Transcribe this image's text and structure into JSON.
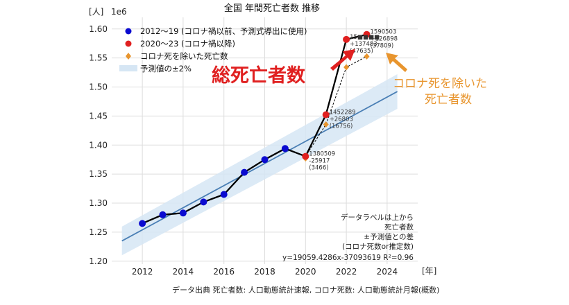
{
  "chart_data": {
    "type": "line",
    "title": "全国 年間死亡者数 推移",
    "y_unit_label": "[人]",
    "y_scale_label": "1e6",
    "x_unit_label": "[年]",
    "xlim": [
      2010.5,
      2025.5
    ],
    "ylim": [
      1.195,
      1.62
    ],
    "x_ticks": [
      2012,
      2014,
      2016,
      2018,
      2020,
      2022,
      2024
    ],
    "y_ticks": [
      1.2,
      1.25,
      1.3,
      1.35,
      1.4,
      1.45,
      1.5,
      1.55,
      1.6
    ],
    "grid": true,
    "legend_position": "top-left",
    "colors": {
      "pre": "#0a0ad0",
      "post": "#e02020",
      "excl": "#e8952e",
      "trend": "#4a7fb5",
      "band": "#d6e6f4",
      "line": "#000000"
    },
    "legend": [
      {
        "label": "2012〜19 (コロナ禍以前、予測式導出に使用)",
        "marker": "circle",
        "color": "#0a0ad0"
      },
      {
        "label": "2020〜23 (コロナ禍以降)",
        "marker": "circle",
        "color": "#e02020"
      },
      {
        "label": "コロナ死を除いた死亡数",
        "marker": "diamond",
        "color": "#e8952e"
      },
      {
        "label": "予測値の±2%",
        "marker": "band",
        "color": "#d6e6f4"
      }
    ],
    "series": [
      {
        "name": "2012〜19 (コロナ禍以前、予測式導出に使用)",
        "x": [
          2012,
          2013,
          2014,
          2015,
          2016,
          2017,
          2018,
          2019
        ],
        "y": [
          1.265,
          1.28,
          1.283,
          1.302,
          1.315,
          1.353,
          1.375,
          1.394
        ]
      },
      {
        "name": "2020〜23 (コロナ禍以降)",
        "x": [
          2020,
          2021,
          2022,
          2023
        ],
        "y": [
          1.380509,
          1.452289,
          1.582,
          1.590503
        ]
      },
      {
        "name": "コロナ死を除いた死亡数",
        "x": [
          2020,
          2021,
          2022,
          2023
        ],
        "y": [
          1.377043,
          1.435533,
          1.534,
          1.552694
        ]
      }
    ],
    "trend": {
      "slope": 19059.4286,
      "intercept": -37093619,
      "band_pct": 0.02,
      "x_range": [
        2011,
        2024.5
      ],
      "equation_label": "y=19059.4286x-37093619   R²=0.96"
    },
    "data_labels": [
      {
        "x": 2020,
        "lines": [
          "1380509",
          "-25917",
          "(3466)"
        ]
      },
      {
        "x": 2021,
        "lines": [
          "1452289",
          "+26803",
          "(16756)"
        ]
      },
      {
        "x": 2022,
        "lines": [
          "15■■■■",
          "+137483",
          "(47635)"
        ]
      },
      {
        "x": 2023,
        "lines": [
          "1590503",
          "+126898",
          "(37809)"
        ]
      }
    ],
    "note_lines": [
      "データラベルは上から",
      "死亡者数",
      "±予測値との差",
      "(コロナ死数or推定数)"
    ],
    "annotations": {
      "total_deaths": "総死亡者数",
      "excl_covid_line1": "コロナ死を除いた",
      "excl_covid_line2": "死亡者数"
    }
  },
  "source": "データ出典 死亡者数: 人口動態統計速報, コロナ死数: 人口動態統計月報(概数)"
}
